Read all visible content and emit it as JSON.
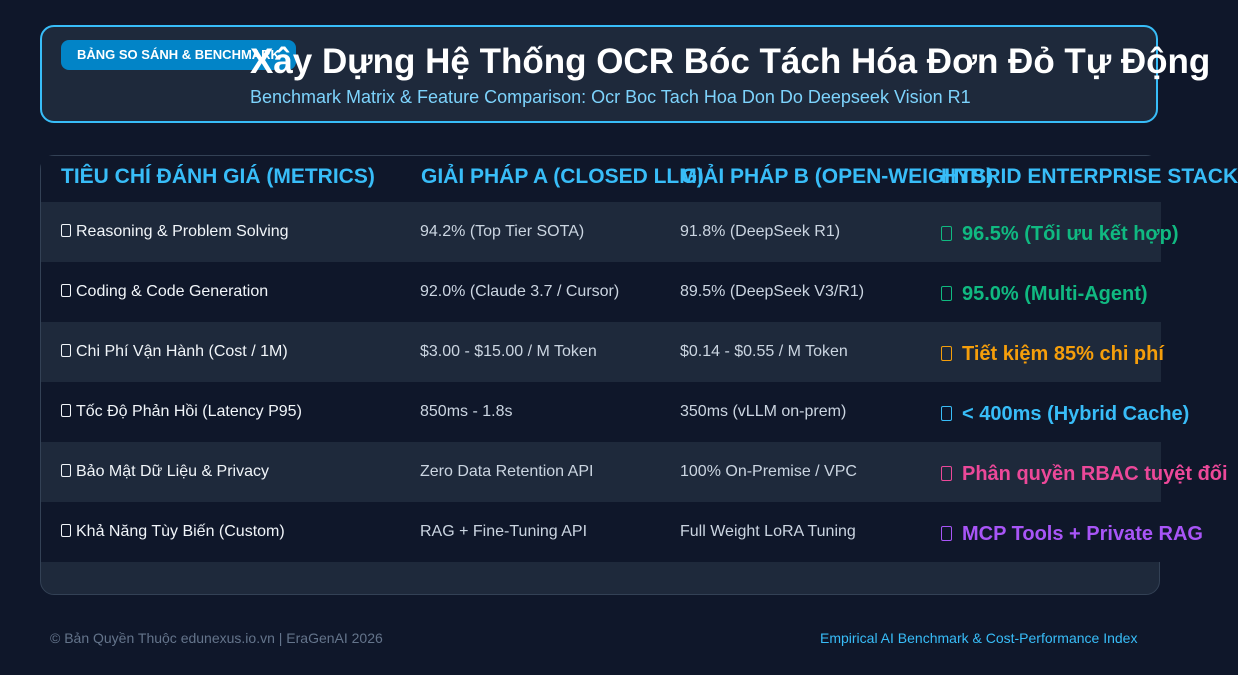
{
  "header": {
    "badge": "BẢNG SO SÁNH & BENCHMARK",
    "title": "Xây Dựng Hệ Thống OCR Bóc Tách Hóa Đơn Đỏ Tự Động",
    "subtitle": "Benchmark Matrix & Feature Comparison: Ocr Boc Tach Hoa Don Do Deepseek Vision R1"
  },
  "table": {
    "columns": [
      "TIÊU CHÍ ĐÁNH GIÁ (METRICS)",
      "GIẢI PHÁP A (CLOSED LLM)",
      "GIẢI PHÁP B (OPEN-WEIGHTS)",
      "HYBRID ENTERPRISE STACK"
    ],
    "rows": [
      {
        "metric": "Reasoning & Problem Solving",
        "icon": "brain-icon",
        "a": "94.2% (Top Tier SOTA)",
        "b": "91.8% (DeepSeek R1)",
        "hybrid": "96.5% (Tối ưu kết hợp)",
        "hybrid_icon": "check-icon",
        "hybrid_color": "#10b981"
      },
      {
        "metric": "Coding & Code Generation",
        "icon": "laptop-icon",
        "a": "92.0% (Claude 3.7 / Cursor)",
        "b": "89.5% (DeepSeek V3/R1)",
        "hybrid": "95.0% (Multi-Agent)",
        "hybrid_icon": "check-icon",
        "hybrid_color": "#10b981"
      },
      {
        "metric": "Chi Phí Vận Hành (Cost / 1M)",
        "icon": "money-icon",
        "a": "$3.00 - $15.00 / M Token",
        "b": "$0.14 - $0.55 / M Token",
        "hybrid": "Tiết kiệm 85% chi phí",
        "hybrid_icon": "lightning-icon",
        "hybrid_color": "#f59e0b"
      },
      {
        "metric": "Tốc Độ Phản Hồi (Latency P95)",
        "icon": "lightning-icon",
        "a": "850ms - 1.8s",
        "b": "350ms (vLLM on-prem)",
        "hybrid": "< 400ms (Hybrid Cache)",
        "hybrid_icon": "rocket-icon",
        "hybrid_color": "#38bdf8"
      },
      {
        "metric": "Bảo Mật Dữ Liệu & Privacy",
        "icon": "lock-icon",
        "a": "Zero Data Retention API",
        "b": "100% On-Premise / VPC",
        "hybrid": "Phân quyền RBAC tuyệt đối",
        "hybrid_icon": "shield-icon",
        "hybrid_color": "#ec4899"
      },
      {
        "metric": "Khả Năng Tùy Biến (Custom)",
        "icon": "tools-icon",
        "a": "RAG + Fine-Tuning API",
        "b": "Full Weight LoRA Tuning",
        "hybrid": "MCP Tools + Private RAG",
        "hybrid_icon": "puzzle-icon",
        "hybrid_color": "#a855f7"
      }
    ]
  },
  "footer": {
    "left": "© Bản Quyền Thuộc edunexus.io.vn | EraGenAI 2026",
    "right": "Empirical AI Benchmark & Cost-Performance Index"
  }
}
